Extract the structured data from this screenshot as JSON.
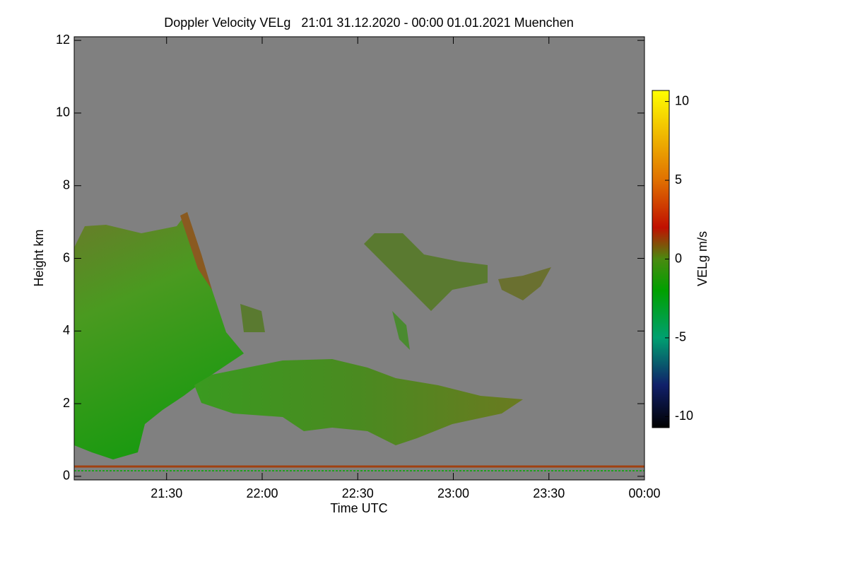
{
  "chart_data": {
    "type": "time-height",
    "title": "Doppler Velocity VELg   21:01 31.12.2020 - 00:00 01.01.2021 Muenchen",
    "xlabel": "Time UTC",
    "ylabel": "Height km",
    "colorbar_label": "VELg m/s",
    "background": "#808080",
    "xlim": [
      21.0167,
      24.0
    ],
    "xticks": [
      {
        "value": 21.5,
        "label": "21:30"
      },
      {
        "value": 22.0,
        "label": "22:00"
      },
      {
        "value": 22.5,
        "label": "22:30"
      },
      {
        "value": 23.0,
        "label": "23:00"
      },
      {
        "value": 23.5,
        "label": "23:30"
      },
      {
        "value": 24.0,
        "label": "00:00"
      }
    ],
    "ylim": [
      -0.1,
      12.1
    ],
    "yticks": [
      0,
      2,
      4,
      6,
      8,
      10,
      12
    ],
    "clim": [
      -10.7,
      10.7
    ],
    "cticks": [
      -10,
      -5,
      0,
      5,
      10
    ],
    "colorscale": [
      {
        "value": -10.7,
        "color": "#000000"
      },
      {
        "value": -8,
        "color": "#10206a"
      },
      {
        "value": -5,
        "color": "#00a070"
      },
      {
        "value": -2,
        "color": "#00a000"
      },
      {
        "value": 0,
        "color": "#4a8a10"
      },
      {
        "value": 2,
        "color": "#c01000"
      },
      {
        "value": 5,
        "color": "#e07000"
      },
      {
        "value": 10.7,
        "color": "#ffff00"
      }
    ]
  }
}
